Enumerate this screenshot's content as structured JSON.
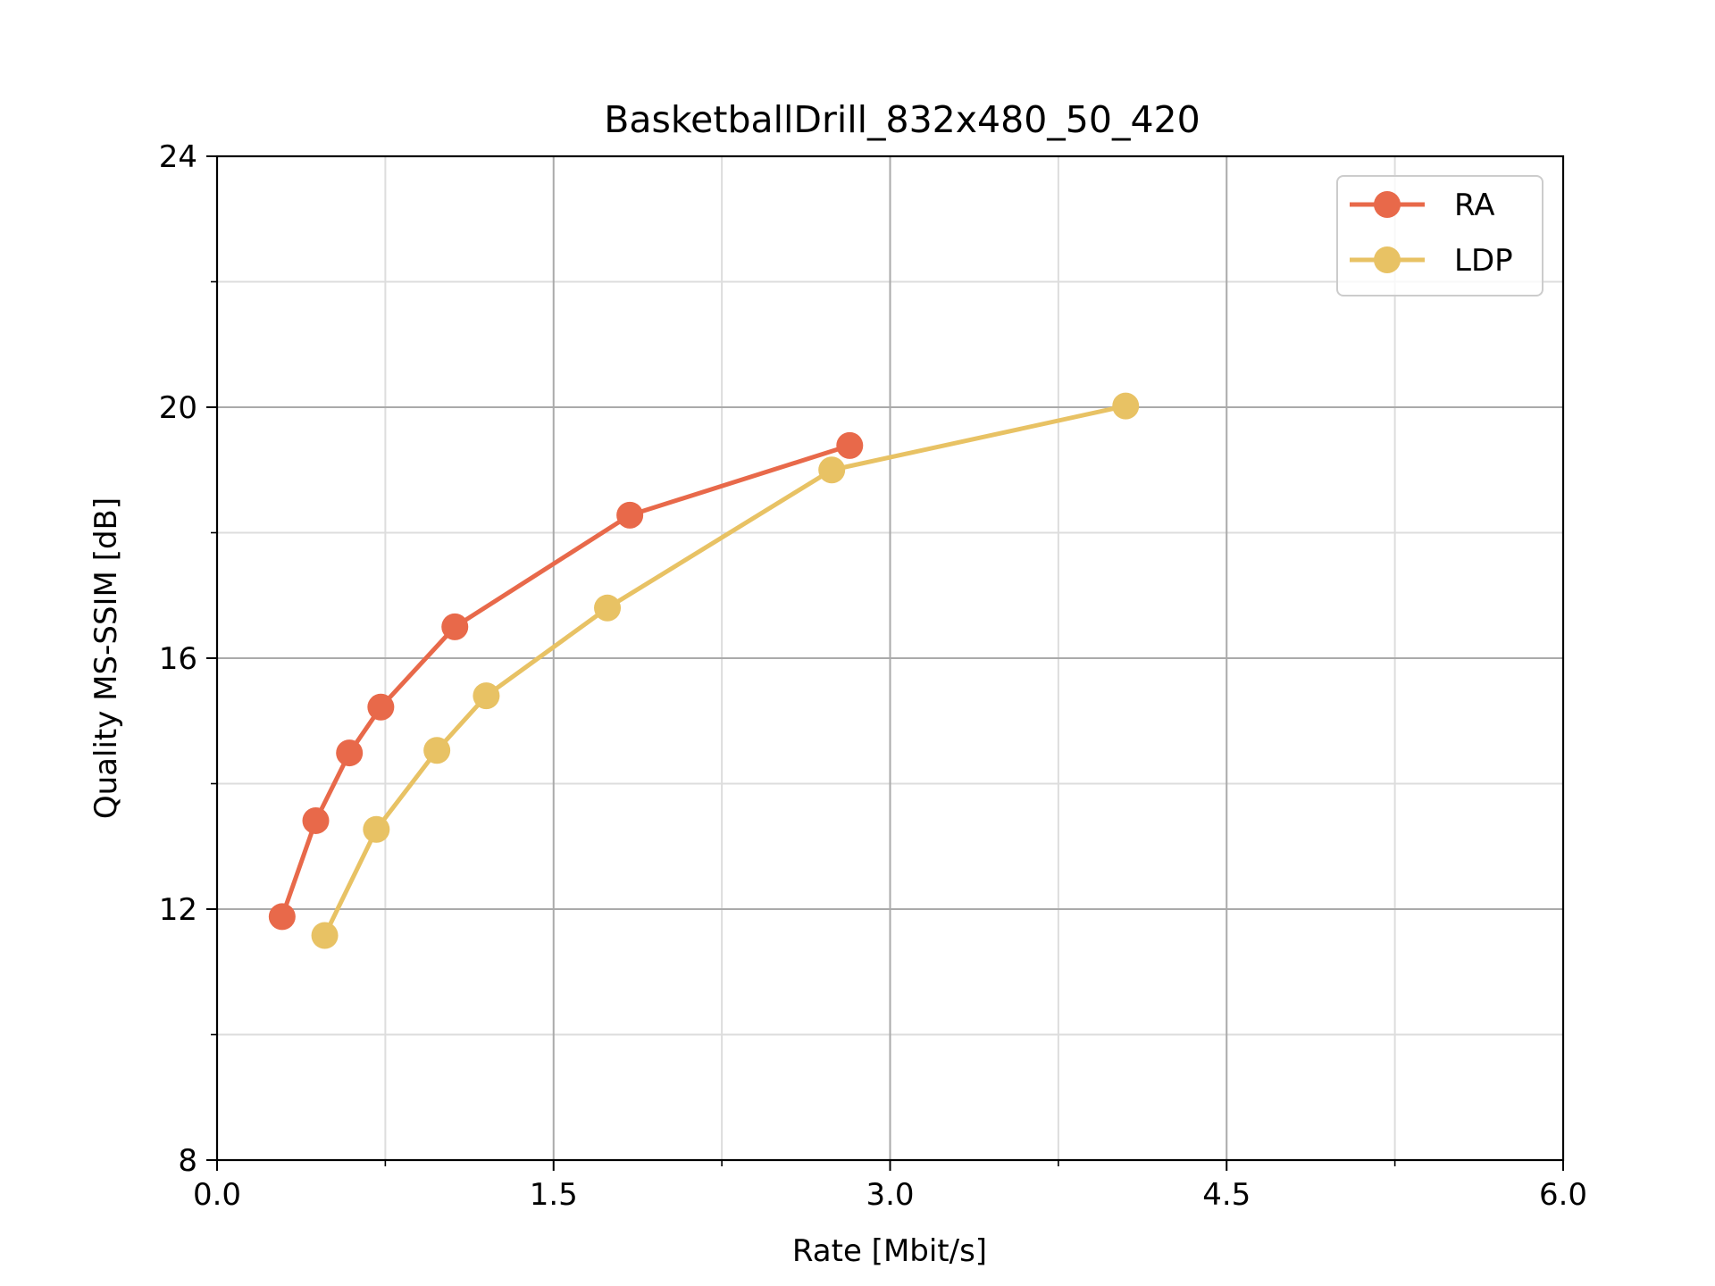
{
  "chart_data": {
    "type": "line",
    "title": "BasketballDrill_832x480_50_420",
    "xlabel": "Rate [Mbit/s]",
    "ylabel": "Quality MS-SSIM [dB]",
    "xlim": [
      0.0,
      6.0
    ],
    "ylim": [
      8,
      24
    ],
    "xticks": [
      "0.0",
      "1.5",
      "3.0",
      "4.5",
      "6.0"
    ],
    "yticks": [
      "8",
      "12",
      "16",
      "20",
      "24"
    ],
    "grid": true,
    "legend_position": "top-right",
    "series": [
      {
        "name": "RA",
        "color": "#e8694a",
        "x": [
          0.29,
          0.44,
          0.59,
          0.73,
          1.06,
          1.84,
          2.82
        ],
        "y": [
          11.88,
          13.41,
          14.49,
          15.22,
          16.5,
          18.28,
          19.39
        ]
      },
      {
        "name": "LDP",
        "color": "#e8c264",
        "x": [
          0.48,
          0.71,
          0.98,
          1.2,
          1.74,
          2.74,
          4.05
        ],
        "y": [
          11.58,
          13.27,
          14.53,
          15.4,
          16.8,
          19.0,
          20.02
        ]
      }
    ]
  }
}
